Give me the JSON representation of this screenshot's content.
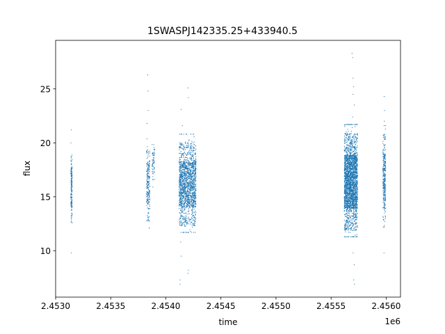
{
  "chart_data": {
    "type": "scatter",
    "title": "1SWASPJ142335.25+433940.5",
    "xlabel": "time",
    "ylabel": "flux",
    "x_offset_label": "1e6",
    "xlim": [
      2453000,
      2456130
    ],
    "ylim": [
      5.7,
      29.5
    ],
    "x_ticks": [
      2453000,
      2453500,
      2454000,
      2454500,
      2455000,
      2455500,
      2456000
    ],
    "x_tick_labels": [
      "2.4530",
      "2.4535",
      "2.4540",
      "2.4545",
      "2.4550",
      "2.4555",
      "2.4560"
    ],
    "y_ticks": [
      10,
      15,
      20,
      25
    ],
    "y_tick_labels": [
      "10",
      "15",
      "20",
      "25"
    ],
    "grid": false,
    "marker_color": "#1f77b4",
    "series": [
      {
        "clusters": [
          {
            "x_range": [
              2453138,
              2453150
            ],
            "core": [
              12.5,
              19.2
            ],
            "density": 180,
            "outliers": [
              [
                2453142,
                21.2
              ],
              [
                2453143,
                9.8
              ]
            ]
          },
          {
            "x_range": [
              2453825,
              2453855
            ],
            "core": [
              12.7,
              19.8
            ],
            "density": 220,
            "outliers": [
              [
                2453835,
                26.3
              ],
              [
                2453838,
                24.8
              ],
              [
                2453840,
                23.0
              ],
              [
                2453830,
                21.8
              ]
            ]
          },
          {
            "x_range": [
              2453875,
              2453900
            ],
            "core": [
              16.5,
              19.9
            ],
            "density": 60,
            "outliers": []
          },
          {
            "x_range": [
              2454120,
              2454275
            ],
            "core": [
              12.3,
              20.0
            ],
            "density": 1700,
            "outliers": [
              [
                2454140,
                23.1
              ],
              [
                2454200,
                25.1
              ],
              [
                2454205,
                24.2
              ],
              [
                2454150,
                21.6
              ],
              [
                2454135,
                10.8
              ],
              [
                2454140,
                9.5
              ],
              [
                2454130,
                7.3
              ],
              [
                2454130,
                6.9
              ],
              [
                2454205,
                8.2
              ],
              [
                2454200,
                7.9
              ]
            ]
          },
          {
            "x_range": [
              2455620,
              2455740
            ],
            "core": [
              11.9,
              20.9
            ],
            "density": 2600,
            "outliers": [
              [
                2455690,
                28.3
              ],
              [
                2455695,
                27.9
              ],
              [
                2455700,
                26.0
              ],
              [
                2455705,
                25.2
              ],
              [
                2455700,
                24.5
              ],
              [
                2455710,
                23.5
              ],
              [
                2455695,
                22.4
              ],
              [
                2455700,
                9.8
              ],
              [
                2455710,
                8.7
              ],
              [
                2455705,
                7.3
              ],
              [
                2455712,
                6.9
              ]
            ]
          },
          {
            "x_range": [
              2455970,
              2455995
            ],
            "core": [
              12.8,
              20.8
            ],
            "density": 320,
            "outliers": [
              [
                2455982,
                24.3
              ],
              [
                2455985,
                23.0
              ],
              [
                2455984,
                22.0
              ],
              [
                2455980,
                9.8
              ]
            ]
          }
        ]
      }
    ]
  }
}
